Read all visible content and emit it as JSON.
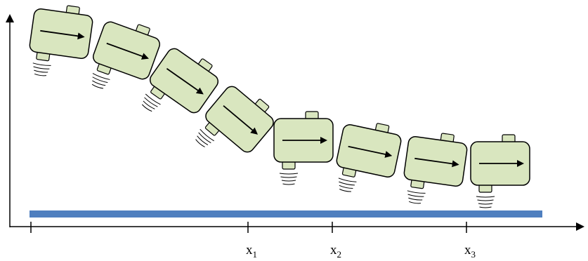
{
  "axis_labels": [
    {
      "base": "x",
      "sub": "1"
    },
    {
      "base": "x",
      "sub": "2"
    },
    {
      "base": "x",
      "sub": "3"
    }
  ]
}
